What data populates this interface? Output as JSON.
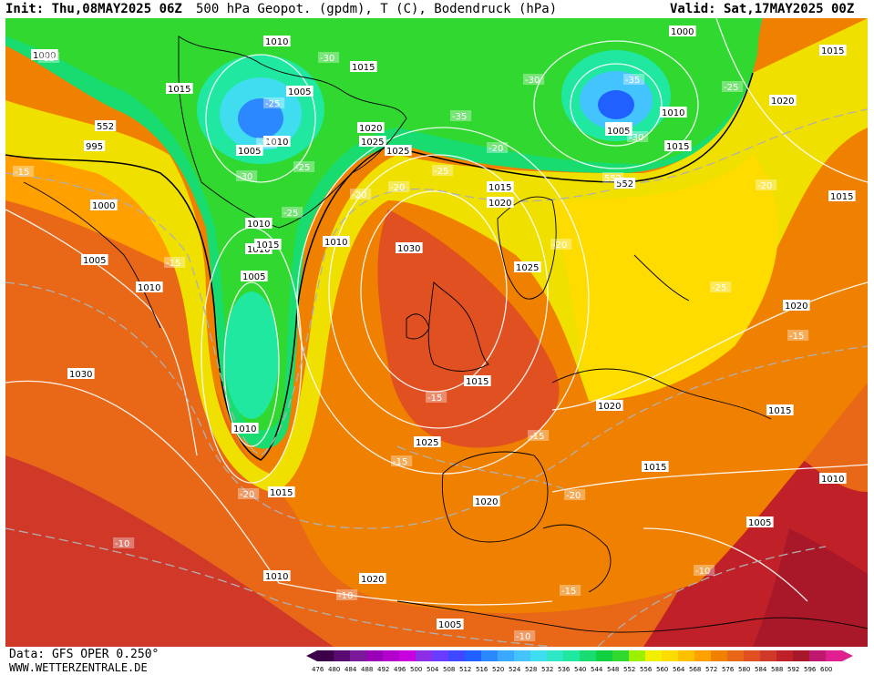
{
  "header": {
    "init": "Init: Thu,08MAY2025 06Z",
    "title": "500 hPa Geopot. (gpdm), T (C), Bodendruck (hPa)",
    "valid": "Valid: Sat,17MAY2025 00Z"
  },
  "footer": {
    "data_source": "Data: GFS OPER 0.250°",
    "website": "WWW.WETTERZENTRALE.DE"
  },
  "colorbar": {
    "values": [
      "476",
      "480",
      "484",
      "488",
      "492",
      "496",
      "500",
      "504",
      "508",
      "512",
      "516",
      "520",
      "524",
      "528",
      "532",
      "536",
      "540",
      "544",
      "548",
      "552",
      "556",
      "560",
      "564",
      "568",
      "572",
      "576",
      "580",
      "584",
      "588",
      "592",
      "596",
      "600"
    ],
    "colors": [
      "#3d0048",
      "#5a0a73",
      "#7a1a9a",
      "#9a00b5",
      "#b400cc",
      "#c800e0",
      "#8c2ee6",
      "#6a3cff",
      "#4048ff",
      "#2060ff",
      "#2c88ff",
      "#3aa8ff",
      "#44c4ff",
      "#40dcf0",
      "#30e8c8",
      "#20e8a0",
      "#18dc70",
      "#10d040",
      "#30d830",
      "#9cf000",
      "#f0f000",
      "#ffdc00",
      "#ffc000",
      "#ffa000",
      "#f08000",
      "#e86818",
      "#e05020",
      "#d03828",
      "#c02028",
      "#a81828",
      "#c01870",
      "#e02090"
    ]
  },
  "isobar_labels": [
    "1000",
    "1015",
    "1010",
    "1005",
    "1015",
    "1010",
    "1005",
    "1000",
    "1015",
    "552",
    "995",
    "1010",
    "1005",
    "1020",
    "1025",
    "1025",
    "1005",
    "1010",
    "1000",
    "1005",
    "1010",
    "1015",
    "1010",
    "1030",
    "1015",
    "1020",
    "1025",
    "1005",
    "1010",
    "1015",
    "1030",
    "1015",
    "1025",
    "1020",
    "1010",
    "552",
    "1015",
    "1020",
    "1015",
    "1020",
    "1010",
    "1005",
    "1020",
    "1015",
    "1015",
    "1020",
    "1010",
    "1005"
  ],
  "temp_labels": [
    "-15",
    "-30",
    "-35",
    "-30",
    "-25",
    "-25",
    "-20",
    "-30",
    "-35",
    "-30",
    "-35",
    "-25",
    "-25",
    "552",
    "-20",
    "-20",
    "-15",
    "-15",
    "-20",
    "-25",
    "-20",
    "-15",
    "-15",
    "-25",
    "-15",
    "-15",
    "-20",
    "-20",
    "-10",
    "-10",
    "-15",
    "-10",
    "-10"
  ]
}
